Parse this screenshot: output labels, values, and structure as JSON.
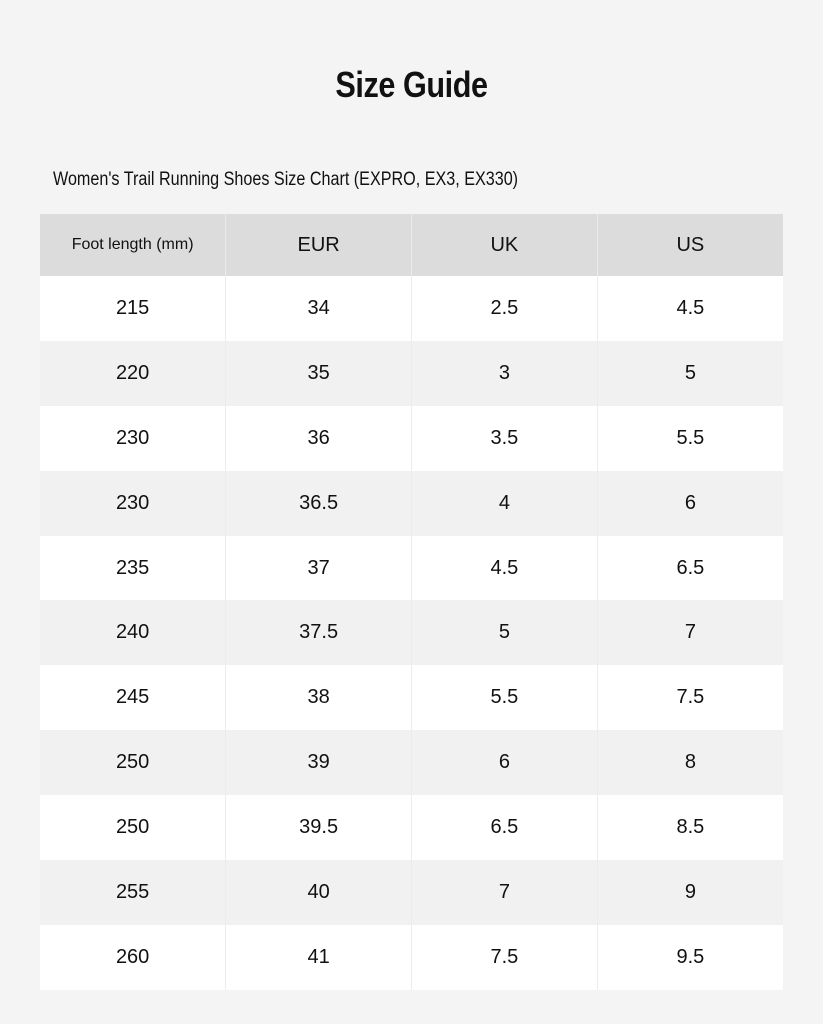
{
  "header": {
    "title": "Size Guide",
    "subtitle": "Women's Trail Running Shoes Size Chart (EXPRO, EX3, EX330)"
  },
  "table": {
    "columns": [
      "Foot length (mm)",
      "EUR",
      "UK",
      "US"
    ],
    "rows": [
      [
        "215",
        "34",
        "2.5",
        "4.5"
      ],
      [
        "220",
        "35",
        "3",
        "5"
      ],
      [
        "230",
        "36",
        "3.5",
        "5.5"
      ],
      [
        "230",
        "36.5",
        "4",
        "6"
      ],
      [
        "235",
        "37",
        "4.5",
        "6.5"
      ],
      [
        "240",
        "37.5",
        "5",
        "7"
      ],
      [
        "245",
        "38",
        "5.5",
        "7.5"
      ],
      [
        "250",
        "39",
        "6",
        "8"
      ],
      [
        "250",
        "39.5",
        "6.5",
        "8.5"
      ],
      [
        "255",
        "40",
        "7",
        "9"
      ],
      [
        "260",
        "41",
        "7.5",
        "9.5"
      ]
    ]
  }
}
